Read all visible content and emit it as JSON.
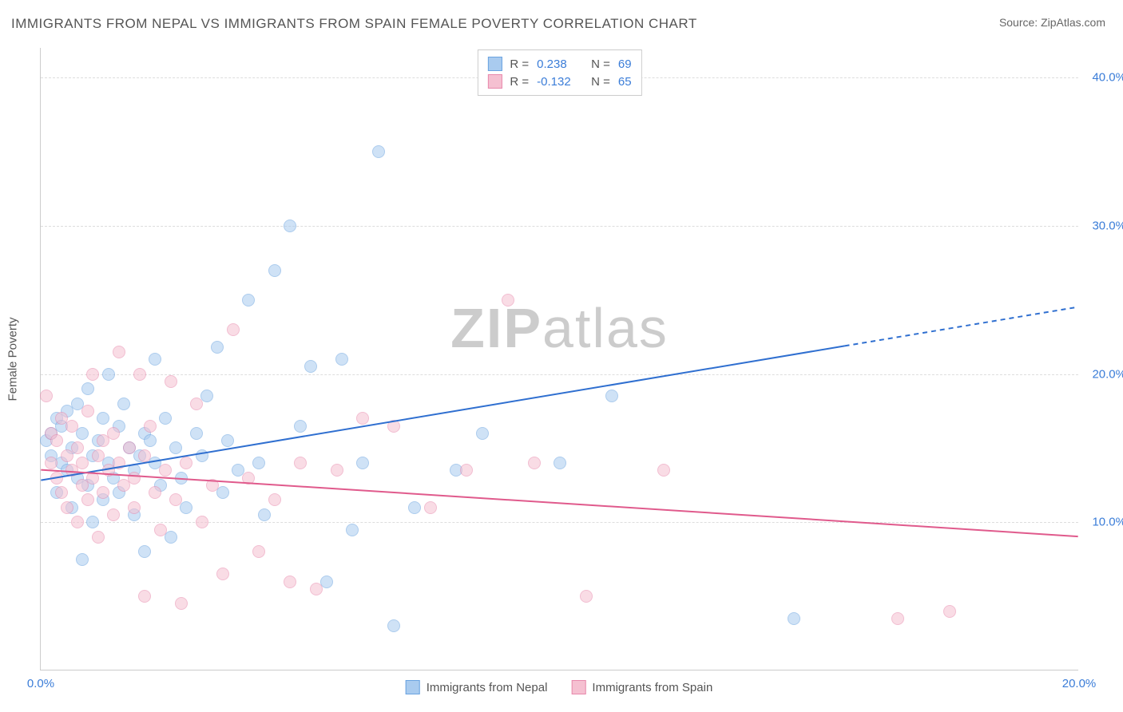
{
  "title": "IMMIGRANTS FROM NEPAL VS IMMIGRANTS FROM SPAIN FEMALE POVERTY CORRELATION CHART",
  "source": "Source: ZipAtlas.com",
  "watermark": "ZIPatlas",
  "ylabel": "Female Poverty",
  "chart": {
    "type": "scatter",
    "xlim": [
      0,
      20
    ],
    "ylim": [
      0,
      42
    ],
    "xticks": [
      {
        "v": 0,
        "label": "0.0%"
      },
      {
        "v": 20,
        "label": "20.0%"
      }
    ],
    "yticks": [
      {
        "v": 10,
        "label": "10.0%"
      },
      {
        "v": 20,
        "label": "20.0%"
      },
      {
        "v": 30,
        "label": "30.0%"
      },
      {
        "v": 40,
        "label": "40.0%"
      }
    ],
    "marker_radius": 8,
    "background_color": "#ffffff",
    "grid_color": "#dddddd",
    "series": [
      {
        "name": "Immigrants from Nepal",
        "color_fill": "#a9cbef",
        "color_stroke": "#6aa3e0",
        "R": "0.238",
        "N": "69",
        "trend": {
          "x1": 0,
          "y1": 12.8,
          "x2": 20,
          "y2": 24.5,
          "solid_until_x": 15.5,
          "color": "#2f6fd0",
          "width": 2
        },
        "points": [
          [
            0.1,
            15.5
          ],
          [
            0.2,
            16.0
          ],
          [
            0.2,
            14.5
          ],
          [
            0.3,
            17.0
          ],
          [
            0.3,
            12.0
          ],
          [
            0.4,
            16.5
          ],
          [
            0.4,
            14.0
          ],
          [
            0.5,
            13.5
          ],
          [
            0.5,
            17.5
          ],
          [
            0.6,
            15.0
          ],
          [
            0.6,
            11.0
          ],
          [
            0.7,
            18.0
          ],
          [
            0.7,
            13.0
          ],
          [
            0.8,
            16.0
          ],
          [
            0.8,
            7.5
          ],
          [
            0.9,
            12.5
          ],
          [
            0.9,
            19.0
          ],
          [
            1.0,
            14.5
          ],
          [
            1.0,
            10.0
          ],
          [
            1.1,
            15.5
          ],
          [
            1.2,
            17.0
          ],
          [
            1.2,
            11.5
          ],
          [
            1.3,
            14.0
          ],
          [
            1.3,
            20.0
          ],
          [
            1.4,
            13.0
          ],
          [
            1.5,
            16.5
          ],
          [
            1.5,
            12.0
          ],
          [
            1.6,
            18.0
          ],
          [
            1.7,
            15.0
          ],
          [
            1.8,
            13.5
          ],
          [
            1.8,
            10.5
          ],
          [
            1.9,
            14.5
          ],
          [
            2.0,
            16.0
          ],
          [
            2.0,
            8.0
          ],
          [
            2.1,
            15.5
          ],
          [
            2.2,
            14.0
          ],
          [
            2.2,
            21.0
          ],
          [
            2.3,
            12.5
          ],
          [
            2.4,
            17.0
          ],
          [
            2.5,
            9.0
          ],
          [
            2.6,
            15.0
          ],
          [
            2.7,
            13.0
          ],
          [
            2.8,
            11.0
          ],
          [
            3.0,
            16.0
          ],
          [
            3.1,
            14.5
          ],
          [
            3.2,
            18.5
          ],
          [
            3.4,
            21.8
          ],
          [
            3.5,
            12.0
          ],
          [
            3.6,
            15.5
          ],
          [
            3.8,
            13.5
          ],
          [
            4.0,
            25.0
          ],
          [
            4.2,
            14.0
          ],
          [
            4.3,
            10.5
          ],
          [
            4.5,
            27.0
          ],
          [
            4.8,
            30.0
          ],
          [
            5.0,
            16.5
          ],
          [
            5.2,
            20.5
          ],
          [
            5.5,
            6.0
          ],
          [
            5.8,
            21.0
          ],
          [
            6.0,
            9.5
          ],
          [
            6.2,
            14.0
          ],
          [
            6.5,
            35.0
          ],
          [
            6.8,
            3.0
          ],
          [
            7.2,
            11.0
          ],
          [
            8.0,
            13.5
          ],
          [
            8.5,
            16.0
          ],
          [
            10.0,
            14.0
          ],
          [
            11.0,
            18.5
          ],
          [
            14.5,
            3.5
          ]
        ]
      },
      {
        "name": "Immigrants from Spain",
        "color_fill": "#f5c0d1",
        "color_stroke": "#e889ac",
        "R": "-0.132",
        "N": "65",
        "trend": {
          "x1": 0,
          "y1": 13.5,
          "x2": 20,
          "y2": 9.0,
          "solid_until_x": 20,
          "color": "#e05a8c",
          "width": 2
        },
        "points": [
          [
            0.1,
            18.5
          ],
          [
            0.2,
            14.0
          ],
          [
            0.2,
            16.0
          ],
          [
            0.3,
            13.0
          ],
          [
            0.3,
            15.5
          ],
          [
            0.4,
            12.0
          ],
          [
            0.4,
            17.0
          ],
          [
            0.5,
            14.5
          ],
          [
            0.5,
            11.0
          ],
          [
            0.6,
            16.5
          ],
          [
            0.6,
            13.5
          ],
          [
            0.7,
            15.0
          ],
          [
            0.7,
            10.0
          ],
          [
            0.8,
            14.0
          ],
          [
            0.8,
            12.5
          ],
          [
            0.9,
            17.5
          ],
          [
            0.9,
            11.5
          ],
          [
            1.0,
            13.0
          ],
          [
            1.0,
            20.0
          ],
          [
            1.1,
            14.5
          ],
          [
            1.1,
            9.0
          ],
          [
            1.2,
            15.5
          ],
          [
            1.2,
            12.0
          ],
          [
            1.3,
            13.5
          ],
          [
            1.4,
            16.0
          ],
          [
            1.4,
            10.5
          ],
          [
            1.5,
            14.0
          ],
          [
            1.5,
            21.5
          ],
          [
            1.6,
            12.5
          ],
          [
            1.7,
            15.0
          ],
          [
            1.8,
            11.0
          ],
          [
            1.8,
            13.0
          ],
          [
            1.9,
            20.0
          ],
          [
            2.0,
            14.5
          ],
          [
            2.0,
            5.0
          ],
          [
            2.1,
            16.5
          ],
          [
            2.2,
            12.0
          ],
          [
            2.3,
            9.5
          ],
          [
            2.4,
            13.5
          ],
          [
            2.5,
            19.5
          ],
          [
            2.6,
            11.5
          ],
          [
            2.7,
            4.5
          ],
          [
            2.8,
            14.0
          ],
          [
            3.0,
            18.0
          ],
          [
            3.1,
            10.0
          ],
          [
            3.3,
            12.5
          ],
          [
            3.5,
            6.5
          ],
          [
            3.7,
            23.0
          ],
          [
            4.0,
            13.0
          ],
          [
            4.2,
            8.0
          ],
          [
            4.5,
            11.5
          ],
          [
            4.8,
            6.0
          ],
          [
            5.0,
            14.0
          ],
          [
            5.3,
            5.5
          ],
          [
            5.7,
            13.5
          ],
          [
            6.2,
            17.0
          ],
          [
            6.8,
            16.5
          ],
          [
            7.5,
            11.0
          ],
          [
            8.2,
            13.5
          ],
          [
            9.0,
            25.0
          ],
          [
            9.5,
            14.0
          ],
          [
            10.5,
            5.0
          ],
          [
            12.0,
            13.5
          ],
          [
            16.5,
            3.5
          ],
          [
            17.5,
            4.0
          ]
        ]
      }
    ]
  },
  "legend_bottom": [
    {
      "color_fill": "#a9cbef",
      "color_stroke": "#6aa3e0",
      "label": "Immigrants from Nepal"
    },
    {
      "color_fill": "#f5c0d1",
      "color_stroke": "#e889ac",
      "label": "Immigrants from Spain"
    }
  ]
}
